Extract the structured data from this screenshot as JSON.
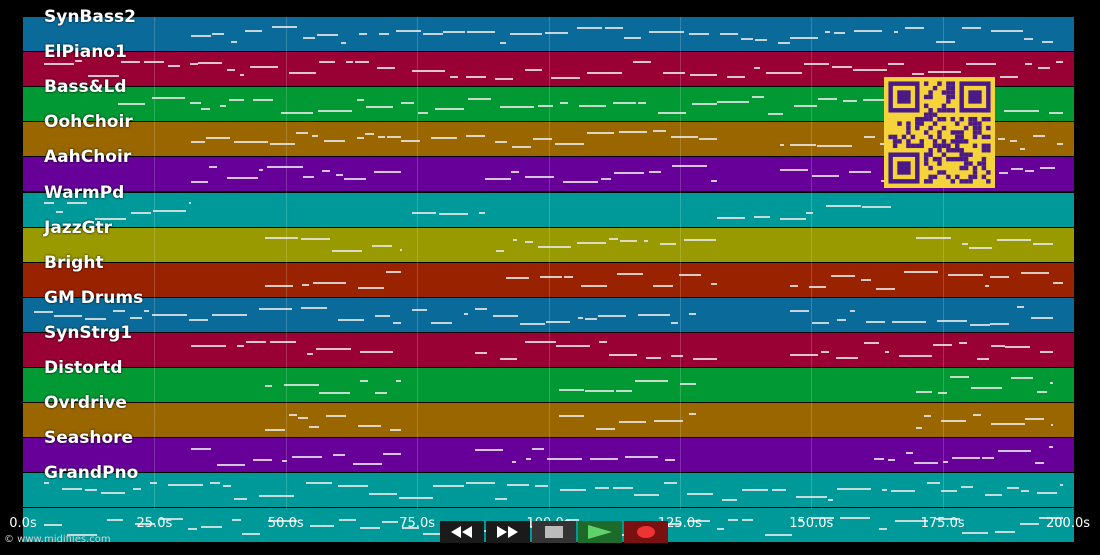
{
  "colors": {
    "blue": "#0a6b9a",
    "crimson": "#990033",
    "green": "#009933",
    "orange": "#996600",
    "purple": "#660099",
    "teal": "#009999",
    "olive": "#999900",
    "rust": "#992200",
    "qr_bg": "#f5d33a",
    "qr_fg": "#4b1a86"
  },
  "tracks": [
    {
      "label": "SynBass2",
      "color": "#0a6b9a"
    },
    {
      "label": "ElPiano1",
      "color": "#990033"
    },
    {
      "label": "Bass&Ld",
      "color": "#009933"
    },
    {
      "label": "OohChoir",
      "color": "#996600"
    },
    {
      "label": "AahChoir",
      "color": "#660099"
    },
    {
      "label": "WarmPd",
      "color": "#009999"
    },
    {
      "label": "JazzGtr",
      "color": "#999900"
    },
    {
      "label": "Bright",
      "color": "#992200"
    },
    {
      "label": "GM Drums",
      "color": "#0a6b9a"
    },
    {
      "label": "SynStrg1",
      "color": "#990033"
    },
    {
      "label": "Distortd",
      "color": "#009933"
    },
    {
      "label": "Ovrdrive",
      "color": "#996600"
    },
    {
      "label": "Seashore",
      "color": "#660099"
    },
    {
      "label": "GrandPno",
      "color": "#009999"
    },
    {
      "label": "",
      "color": "#009999"
    }
  ],
  "timeline": {
    "start_s": 0,
    "end_s": 200,
    "ticks": [
      "0.0s",
      "25.0s",
      "50.0s",
      "75.0s",
      "100.0s",
      "125.0s",
      "150.0s",
      "175.0s",
      "200.0s"
    ]
  },
  "transport": {
    "buttons": [
      {
        "name": "rewind-button",
        "icon": "rewind-icon"
      },
      {
        "name": "fast-forward-button",
        "icon": "fast-forward-icon"
      },
      {
        "name": "stop-button",
        "icon": "stop-icon"
      },
      {
        "name": "play-button",
        "icon": "play-icon"
      },
      {
        "name": "record-button",
        "icon": "record-icon"
      }
    ]
  },
  "copyright": "© www.midifiles.com",
  "qr_code": {
    "icon": "qr-code-icon"
  }
}
